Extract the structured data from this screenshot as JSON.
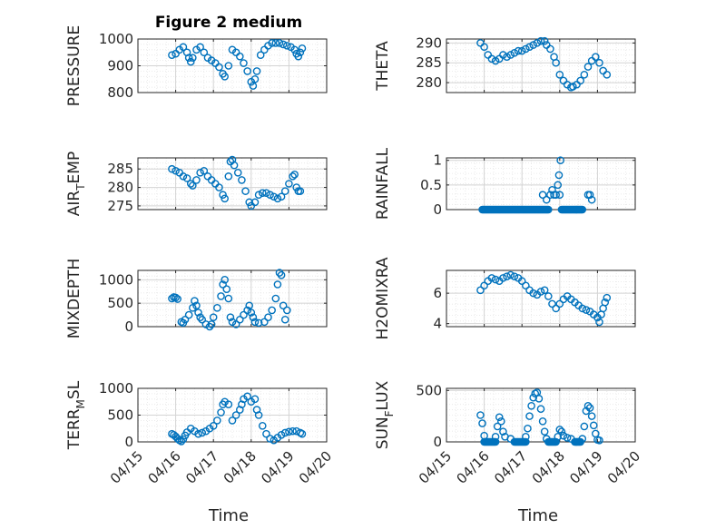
{
  "figure": {
    "title": "Figure 2 medium",
    "x_tick_labels": [
      "04/15",
      "04/16",
      "04/17",
      "04/18",
      "04/19",
      "04/20"
    ],
    "xlabel_left": "Time",
    "xlabel_right": "Time"
  },
  "colors": {
    "marker": "#0072BD",
    "axis": "#262626",
    "grid": "#d4d4d4",
    "minor_grid": "#e6e6e6"
  },
  "chart_data": [
    {
      "type": "scatter",
      "ylabel": "PRESSURE",
      "ylabel_sub": null,
      "ylim": [
        800,
        1000
      ],
      "yticks": [
        800,
        900,
        1000
      ],
      "x_range": [
        "04/15",
        "04/20"
      ],
      "grid": true,
      "minor_grid": true,
      "points": [
        [
          15.9,
          940
        ],
        [
          16.0,
          945
        ],
        [
          16.1,
          960
        ],
        [
          16.2,
          970
        ],
        [
          16.3,
          950
        ],
        [
          16.35,
          930
        ],
        [
          16.4,
          915
        ],
        [
          16.45,
          930
        ],
        [
          16.55,
          960
        ],
        [
          16.65,
          970
        ],
        [
          16.75,
          950
        ],
        [
          16.85,
          930
        ],
        [
          16.95,
          920
        ],
        [
          17.05,
          910
        ],
        [
          17.15,
          895
        ],
        [
          17.25,
          870
        ],
        [
          17.3,
          860
        ],
        [
          17.4,
          900
        ],
        [
          17.5,
          960
        ],
        [
          17.6,
          950
        ],
        [
          17.7,
          935
        ],
        [
          17.8,
          910
        ],
        [
          17.9,
          880
        ],
        [
          18.0,
          840
        ],
        [
          18.05,
          825
        ],
        [
          18.1,
          850
        ],
        [
          18.15,
          880
        ],
        [
          18.25,
          940
        ],
        [
          18.35,
          960
        ],
        [
          18.45,
          975
        ],
        [
          18.55,
          985
        ],
        [
          18.65,
          985
        ],
        [
          18.75,
          985
        ],
        [
          18.85,
          980
        ],
        [
          18.95,
          975
        ],
        [
          19.05,
          970
        ],
        [
          19.15,
          960
        ],
        [
          19.2,
          945
        ],
        [
          19.25,
          935
        ],
        [
          19.3,
          950
        ],
        [
          19.35,
          965
        ]
      ]
    },
    {
      "type": "scatter",
      "ylabel": "THETA",
      "ylabel_sub": null,
      "ylim": [
        277.5,
        291
      ],
      "yticks": [
        280,
        285,
        290
      ],
      "x_range": [
        "04/15",
        "04/20"
      ],
      "grid": true,
      "minor_grid": true,
      "points": [
        [
          15.9,
          290
        ],
        [
          16.0,
          289
        ],
        [
          16.1,
          287
        ],
        [
          16.2,
          286
        ],
        [
          16.3,
          285.5
        ],
        [
          16.4,
          286
        ],
        [
          16.5,
          287
        ],
        [
          16.6,
          286.5
        ],
        [
          16.7,
          287
        ],
        [
          16.8,
          287.5
        ],
        [
          16.9,
          288
        ],
        [
          17.0,
          288
        ],
        [
          17.1,
          288.5
        ],
        [
          17.2,
          289
        ],
        [
          17.3,
          289.5
        ],
        [
          17.4,
          290
        ],
        [
          17.5,
          290.5
        ],
        [
          17.6,
          290.5
        ],
        [
          17.65,
          289.5
        ],
        [
          17.75,
          288.5
        ],
        [
          17.85,
          286.5
        ],
        [
          17.9,
          285
        ],
        [
          18.0,
          282
        ],
        [
          18.1,
          280.5
        ],
        [
          18.2,
          279.5
        ],
        [
          18.3,
          278.8
        ],
        [
          18.35,
          279
        ],
        [
          18.45,
          279.5
        ],
        [
          18.55,
          280.5
        ],
        [
          18.65,
          282
        ],
        [
          18.75,
          284
        ],
        [
          18.85,
          285.5
        ],
        [
          18.95,
          286.5
        ],
        [
          19.05,
          285
        ],
        [
          19.15,
          283
        ],
        [
          19.25,
          282
        ]
      ]
    },
    {
      "type": "scatter",
      "ylabel": "AIR",
      "ylabel_sub": "T",
      "ylabel_tail": "EMP",
      "ylim": [
        274,
        288
      ],
      "yticks": [
        275,
        280,
        285
      ],
      "x_range": [
        "04/15",
        "04/20"
      ],
      "grid": true,
      "minor_grid": true,
      "points": [
        [
          15.9,
          285
        ],
        [
          16.0,
          284.5
        ],
        [
          16.1,
          284
        ],
        [
          16.2,
          283
        ],
        [
          16.3,
          282.5
        ],
        [
          16.4,
          281
        ],
        [
          16.45,
          280.5
        ],
        [
          16.55,
          282
        ],
        [
          16.65,
          284
        ],
        [
          16.75,
          284.5
        ],
        [
          16.85,
          283
        ],
        [
          16.95,
          282
        ],
        [
          17.05,
          281
        ],
        [
          17.15,
          280
        ],
        [
          17.25,
          278
        ],
        [
          17.3,
          277
        ],
        [
          17.4,
          283
        ],
        [
          17.45,
          287
        ],
        [
          17.5,
          287.5
        ],
        [
          17.55,
          286
        ],
        [
          17.65,
          284
        ],
        [
          17.75,
          282
        ],
        [
          17.85,
          279
        ],
        [
          17.95,
          276
        ],
        [
          18.0,
          275
        ],
        [
          18.1,
          276
        ],
        [
          18.2,
          278
        ],
        [
          18.3,
          278.5
        ],
        [
          18.4,
          278.5
        ],
        [
          18.5,
          278
        ],
        [
          18.6,
          277.5
        ],
        [
          18.7,
          277
        ],
        [
          18.8,
          277.5
        ],
        [
          18.9,
          279
        ],
        [
          19.0,
          281
        ],
        [
          19.1,
          283
        ],
        [
          19.15,
          283.5
        ],
        [
          19.2,
          280
        ],
        [
          19.25,
          279
        ],
        [
          19.3,
          279
        ]
      ]
    },
    {
      "type": "scatter",
      "ylabel": "RAINFALL",
      "ylabel_sub": null,
      "ylim": [
        0,
        1.05
      ],
      "yticks": [
        0,
        0.5,
        1
      ],
      "x_range": [
        "04/15",
        "04/20"
      ],
      "grid": true,
      "minor_grid": true,
      "zero_runs": [
        [
          15.95,
          17.7
        ],
        [
          18.05,
          18.6
        ]
      ],
      "points": [
        [
          17.55,
          0.3
        ],
        [
          17.65,
          0.2
        ],
        [
          17.75,
          0.3
        ],
        [
          17.8,
          0.4
        ],
        [
          17.85,
          0.3
        ],
        [
          17.9,
          0.3
        ],
        [
          17.95,
          0.5
        ],
        [
          18.0,
          0.3
        ],
        [
          17.98,
          0.7
        ],
        [
          18.02,
          1.0
        ],
        [
          18.75,
          0.3
        ],
        [
          18.8,
          0.3
        ],
        [
          18.85,
          0.2
        ]
      ]
    },
    {
      "type": "scatter",
      "ylabel": "MIXDEPTH",
      "ylabel_sub": null,
      "ylim": [
        0,
        1200
      ],
      "yticks": [
        0,
        500,
        1000
      ],
      "x_range": [
        "04/15",
        "04/20"
      ],
      "grid": true,
      "minor_grid": true,
      "points": [
        [
          15.9,
          600
        ],
        [
          15.95,
          630
        ],
        [
          16.0,
          620
        ],
        [
          16.05,
          590
        ],
        [
          16.15,
          100
        ],
        [
          16.2,
          80
        ],
        [
          16.25,
          150
        ],
        [
          16.35,
          250
        ],
        [
          16.45,
          400
        ],
        [
          16.5,
          550
        ],
        [
          16.55,
          450
        ],
        [
          16.6,
          300
        ],
        [
          16.65,
          200
        ],
        [
          16.7,
          150
        ],
        [
          16.8,
          50
        ],
        [
          16.9,
          0
        ],
        [
          16.95,
          50
        ],
        [
          17.0,
          200
        ],
        [
          17.1,
          400
        ],
        [
          17.2,
          650
        ],
        [
          17.25,
          900
        ],
        [
          17.3,
          1000
        ],
        [
          17.35,
          800
        ],
        [
          17.4,
          600
        ],
        [
          17.45,
          200
        ],
        [
          17.5,
          100
        ],
        [
          17.6,
          50
        ],
        [
          17.7,
          150
        ],
        [
          17.8,
          250
        ],
        [
          17.9,
          350
        ],
        [
          17.95,
          450
        ],
        [
          18.0,
          300
        ],
        [
          18.05,
          200
        ],
        [
          18.1,
          100
        ],
        [
          18.2,
          80
        ],
        [
          18.35,
          100
        ],
        [
          18.45,
          200
        ],
        [
          18.55,
          350
        ],
        [
          18.65,
          600
        ],
        [
          18.7,
          900
        ],
        [
          18.75,
          1150
        ],
        [
          18.8,
          1100
        ],
        [
          18.85,
          450
        ],
        [
          18.9,
          150
        ],
        [
          18.95,
          350
        ]
      ]
    },
    {
      "type": "scatter",
      "ylabel": "H2OMIXRA",
      "ylabel_sub": null,
      "ylim": [
        3.8,
        7.5
      ],
      "yticks": [
        4,
        6
      ],
      "x_range": [
        "04/15",
        "04/20"
      ],
      "grid": true,
      "minor_grid": true,
      "points": [
        [
          15.9,
          6.2
        ],
        [
          16.0,
          6.5
        ],
        [
          16.1,
          6.8
        ],
        [
          16.2,
          7.0
        ],
        [
          16.3,
          6.9
        ],
        [
          16.4,
          6.8
        ],
        [
          16.5,
          7.0
        ],
        [
          16.6,
          7.1
        ],
        [
          16.7,
          7.2
        ],
        [
          16.8,
          7.1
        ],
        [
          16.9,
          7.0
        ],
        [
          17.0,
          6.8
        ],
        [
          17.1,
          6.5
        ],
        [
          17.2,
          6.2
        ],
        [
          17.3,
          6.0
        ],
        [
          17.4,
          5.9
        ],
        [
          17.5,
          6.1
        ],
        [
          17.6,
          6.2
        ],
        [
          17.7,
          5.8
        ],
        [
          17.8,
          5.3
        ],
        [
          17.9,
          5.0
        ],
        [
          18.0,
          5.3
        ],
        [
          18.1,
          5.6
        ],
        [
          18.2,
          5.8
        ],
        [
          18.3,
          5.6
        ],
        [
          18.4,
          5.4
        ],
        [
          18.5,
          5.2
        ],
        [
          18.6,
          5.0
        ],
        [
          18.7,
          4.9
        ],
        [
          18.8,
          4.8
        ],
        [
          18.9,
          4.6
        ],
        [
          19.0,
          4.4
        ],
        [
          19.05,
          4.1
        ],
        [
          19.1,
          4.6
        ],
        [
          19.15,
          5.0
        ],
        [
          19.2,
          5.4
        ],
        [
          19.25,
          5.7
        ]
      ]
    },
    {
      "type": "scatter",
      "ylabel": "TERR",
      "ylabel_sub": "M",
      "ylabel_tail": "SL",
      "ylim": [
        0,
        1000
      ],
      "yticks": [
        0,
        500,
        1000
      ],
      "x_range": [
        "04/15",
        "04/20"
      ],
      "grid": true,
      "minor_grid": true,
      "points": [
        [
          15.9,
          150
        ],
        [
          15.95,
          130
        ],
        [
          16.0,
          100
        ],
        [
          16.05,
          60
        ],
        [
          16.1,
          30
        ],
        [
          16.15,
          10
        ],
        [
          16.2,
          50
        ],
        [
          16.25,
          120
        ],
        [
          16.3,
          180
        ],
        [
          16.4,
          250
        ],
        [
          16.5,
          200
        ],
        [
          16.6,
          150
        ],
        [
          16.7,
          170
        ],
        [
          16.8,
          200
        ],
        [
          16.9,
          250
        ],
        [
          17.0,
          300
        ],
        [
          17.1,
          400
        ],
        [
          17.2,
          550
        ],
        [
          17.25,
          700
        ],
        [
          17.3,
          750
        ],
        [
          17.4,
          700
        ],
        [
          17.5,
          400
        ],
        [
          17.6,
          500
        ],
        [
          17.7,
          600
        ],
        [
          17.75,
          700
        ],
        [
          17.8,
          800
        ],
        [
          17.9,
          850
        ],
        [
          18.0,
          750
        ],
        [
          18.1,
          800
        ],
        [
          18.15,
          600
        ],
        [
          18.2,
          500
        ],
        [
          18.3,
          300
        ],
        [
          18.4,
          150
        ],
        [
          18.5,
          60
        ],
        [
          18.6,
          30
        ],
        [
          18.7,
          80
        ],
        [
          18.8,
          130
        ],
        [
          18.9,
          170
        ],
        [
          19.0,
          190
        ],
        [
          19.1,
          200
        ],
        [
          19.2,
          200
        ],
        [
          19.3,
          170
        ],
        [
          19.35,
          150
        ]
      ]
    },
    {
      "type": "scatter",
      "ylabel": "SUN",
      "ylabel_sub": "F",
      "ylabel_tail": "LUX",
      "ylim": [
        0,
        520
      ],
      "yticks": [
        0,
        500
      ],
      "x_range": [
        "04/15",
        "04/20"
      ],
      "grid": true,
      "minor_grid": true,
      "zero_runs": [
        [
          16.0,
          16.3
        ],
        [
          16.8,
          17.1
        ],
        [
          17.7,
          17.9
        ],
        [
          18.4,
          18.55
        ]
      ],
      "points": [
        [
          15.9,
          260
        ],
        [
          15.95,
          180
        ],
        [
          16.0,
          60
        ],
        [
          16.3,
          50
        ],
        [
          16.35,
          150
        ],
        [
          16.4,
          240
        ],
        [
          16.45,
          200
        ],
        [
          16.5,
          100
        ],
        [
          16.55,
          50
        ],
        [
          16.7,
          30
        ],
        [
          17.1,
          50
        ],
        [
          17.15,
          130
        ],
        [
          17.2,
          250
        ],
        [
          17.25,
          350
        ],
        [
          17.3,
          430
        ],
        [
          17.35,
          470
        ],
        [
          17.4,
          480
        ],
        [
          17.45,
          420
        ],
        [
          17.5,
          320
        ],
        [
          17.55,
          200
        ],
        [
          17.6,
          100
        ],
        [
          17.65,
          30
        ],
        [
          17.95,
          50
        ],
        [
          18.0,
          120
        ],
        [
          18.05,
          100
        ],
        [
          18.1,
          60
        ],
        [
          18.2,
          40
        ],
        [
          18.3,
          30
        ],
        [
          18.6,
          30
        ],
        [
          18.65,
          150
        ],
        [
          18.7,
          300
        ],
        [
          18.75,
          350
        ],
        [
          18.8,
          330
        ],
        [
          18.85,
          250
        ],
        [
          18.9,
          160
        ],
        [
          18.95,
          80
        ],
        [
          19.0,
          20
        ],
        [
          19.05,
          15
        ]
      ]
    }
  ]
}
